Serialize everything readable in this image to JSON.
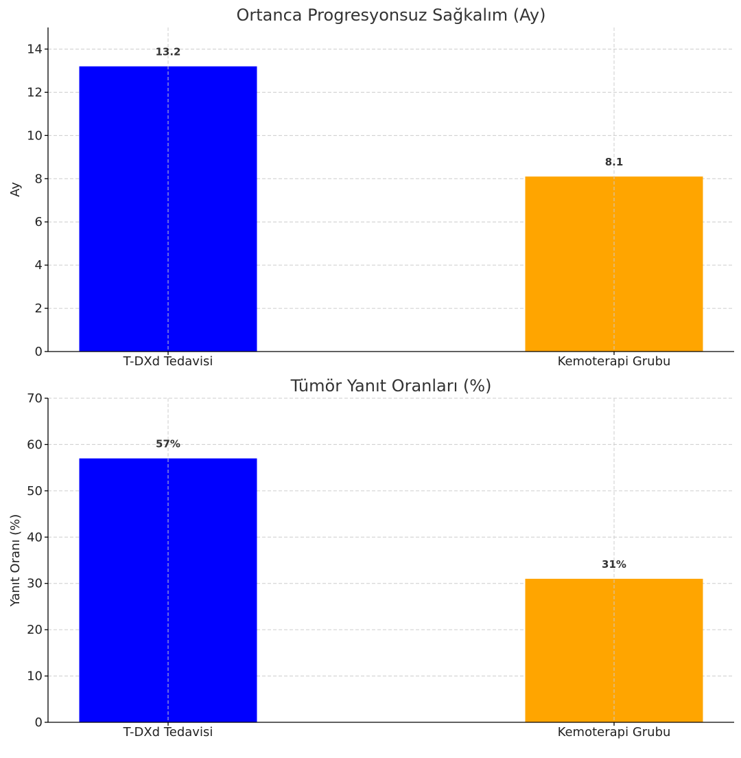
{
  "chart_data": [
    {
      "type": "bar",
      "title": "Ortanca Progresyonsuz Sağkalım (Ay)",
      "xlabel": "",
      "ylabel": "Ay",
      "categories": [
        "T-DXd Tedavisi",
        "Kemoterapi Grubu"
      ],
      "values": [
        13.2,
        8.1
      ],
      "value_labels": [
        "13.2",
        "8.1"
      ],
      "colors": [
        "#0000ff",
        "#ffa500"
      ],
      "ylim": [
        0,
        15
      ],
      "yticks": [
        0,
        2,
        4,
        6,
        8,
        10,
        12,
        14
      ],
      "grid": true
    },
    {
      "type": "bar",
      "title": "Tümör Yanıt Oranları (%)",
      "xlabel": "",
      "ylabel": "Yanıt Oranı (%)",
      "categories": [
        "T-DXd Tedavisi",
        "Kemoterapi Grubu"
      ],
      "values": [
        57,
        31
      ],
      "value_labels": [
        "57%",
        "31%"
      ],
      "colors": [
        "#0000ff",
        "#ffa500"
      ],
      "ylim": [
        0,
        70
      ],
      "yticks": [
        0,
        10,
        20,
        30,
        40,
        50,
        60,
        70
      ],
      "grid": true
    }
  ]
}
